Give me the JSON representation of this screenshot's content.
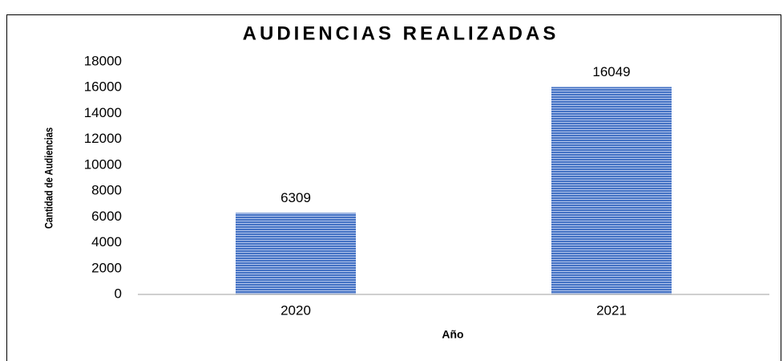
{
  "chart_data": {
    "type": "bar",
    "title": "AUDIENCIAS REALIZADAS",
    "x_label": "Año",
    "y_label": "Cantidad de Audiencias",
    "categories": [
      "2020",
      "2021"
    ],
    "values": [
      6309,
      16049
    ],
    "color": "#4472c4",
    "ylim": [
      0,
      18000
    ],
    "yticks": [
      0,
      2000,
      4000,
      6000,
      8000,
      10000,
      12000,
      14000,
      16000,
      18000
    ],
    "grid": false
  }
}
